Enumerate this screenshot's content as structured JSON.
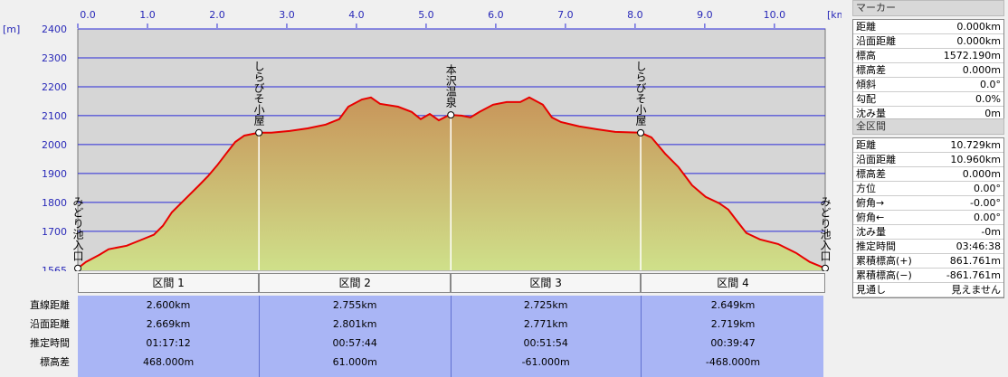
{
  "chart_data": {
    "type": "line",
    "x_unit": "[km]",
    "y_unit": "[m]",
    "x": [
      0,
      0.117,
      0.312,
      0.442,
      0.701,
      0.896,
      1.091,
      1.221,
      1.351,
      1.481,
      1.61,
      1.74,
      1.87,
      2.0,
      2.13,
      2.26,
      2.39,
      2.597,
      2.779,
      3.039,
      3.299,
      3.558,
      3.753,
      3.883,
      4.078,
      4.208,
      4.338,
      4.597,
      4.792,
      4.922,
      5.052,
      5.182,
      5.338,
      5.506,
      5.636,
      5.766,
      5.961,
      6.156,
      6.351,
      6.481,
      6.675,
      6.805,
      6.935,
      7.195,
      7.455,
      7.714,
      8.078,
      8.234,
      8.429,
      8.623,
      8.818,
      9.013,
      9.208,
      9.338,
      9.468,
      9.597,
      9.792,
      10.052,
      10.312,
      10.506,
      10.729
    ],
    "series": [
      {
        "color": "#e80000",
        "values": [
          1572,
          1594,
          1619,
          1638,
          1650,
          1669,
          1688,
          1719,
          1766,
          1797,
          1828,
          1859,
          1891,
          1928,
          1969,
          2009,
          2031,
          2041,
          2041,
          2047,
          2056,
          2069,
          2088,
          2131,
          2156,
          2163,
          2141,
          2131,
          2113,
          2088,
          2106,
          2084,
          2103,
          2100,
          2094,
          2113,
          2138,
          2147,
          2147,
          2163,
          2138,
          2094,
          2078,
          2063,
          2053,
          2044,
          2041,
          2025,
          1969,
          1922,
          1859,
          1819,
          1797,
          1775,
          1734,
          1694,
          1672,
          1656,
          1625,
          1594,
          1572
        ]
      }
    ],
    "xlim": [
      0,
      10.729
    ],
    "ylim": [
      1565,
      2400
    ],
    "xticks": [
      {
        "value": 0,
        "label": "0.0"
      },
      {
        "value": 1,
        "label": "1.0"
      },
      {
        "value": 2,
        "label": "2.0"
      },
      {
        "value": 3,
        "label": "3.0"
      },
      {
        "value": 4,
        "label": "4.0"
      },
      {
        "value": 5,
        "label": "5.0"
      },
      {
        "value": 6,
        "label": "6.0"
      },
      {
        "value": 7,
        "label": "7.0"
      },
      {
        "value": 8,
        "label": "8.0"
      },
      {
        "value": 9,
        "label": "9.0"
      },
      {
        "value": 10,
        "label": "10.0"
      }
    ],
    "yticks": [
      1565,
      1700,
      1800,
      1900,
      2000,
      2100,
      2200,
      2300,
      2400
    ],
    "grid": true,
    "waypoints": [
      {
        "x": 0,
        "label": "みどり池入口"
      },
      {
        "x": 2.6,
        "label": "しらびそ小屋"
      },
      {
        "x": 5.355,
        "label": "本沢温泉"
      },
      {
        "x": 8.08,
        "label": "しらびそ小屋"
      },
      {
        "x": 10.729,
        "label": "みどり池入口"
      }
    ]
  },
  "sections": {
    "headers": [
      "区間 1",
      "区間 2",
      "区間 3",
      "区間 4"
    ],
    "row_labels": [
      "直線距離",
      "沿面距離",
      "推定時間",
      "標高差"
    ],
    "rows": [
      [
        "2.600km",
        "2.755km",
        "2.725km",
        "2.649km"
      ],
      [
        "2.669km",
        "2.801km",
        "2.771km",
        "2.719km"
      ],
      [
        "01:17:12",
        "00:57:44",
        "00:51:54",
        "00:39:47"
      ],
      [
        "468.000m",
        "61.000m",
        "-61.000m",
        "-468.000m"
      ]
    ]
  },
  "marker_panel": {
    "title": "マーカー",
    "rows": [
      [
        "距離",
        "0.000km"
      ],
      [
        "沿面距離",
        "0.000km"
      ],
      [
        "標高",
        "1572.190m"
      ],
      [
        "標高差",
        "0.000m"
      ],
      [
        "傾斜",
        "0.0°"
      ],
      [
        "勾配",
        "0.0%"
      ],
      [
        "沈み量",
        "0m"
      ]
    ]
  },
  "total_panel": {
    "title": "全区間",
    "rows": [
      [
        "距離",
        "10.729km"
      ],
      [
        "沿面距離",
        "10.960km"
      ],
      [
        "標高差",
        "0.000m"
      ],
      [
        "方位",
        "0.00°"
      ],
      [
        "俯角→",
        "-0.00°"
      ],
      [
        "俯角←",
        "0.00°"
      ],
      [
        "沈み量",
        "-0m"
      ],
      [
        "推定時間",
        "03:46:38"
      ],
      [
        "累積標高(+)",
        "861.761m"
      ],
      [
        "累積標高(−)",
        "-861.761m"
      ],
      [
        "見通し",
        "見えません"
      ]
    ]
  }
}
